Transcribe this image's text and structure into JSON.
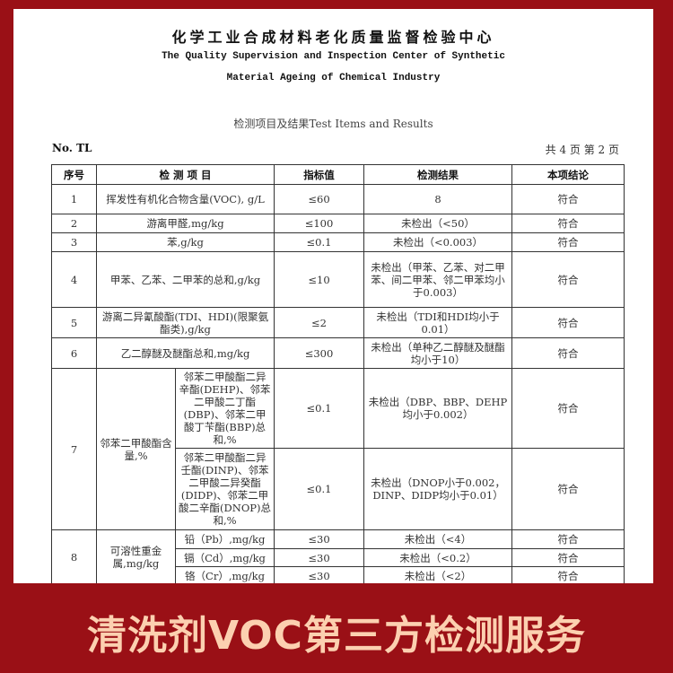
{
  "header": {
    "title_cn": "化学工业合成材料老化质量监督检验中心",
    "title_en_1": "The Quality Supervision and Inspection Center of Synthetic",
    "title_en_2": "Material Ageing of Chemical Industry",
    "section": "检测项目及结果Test Items and Results",
    "report_no": "No. TL",
    "page_info": "共 4 页 第 2 页"
  },
  "table": {
    "headers": [
      "序号",
      "检 测 项 目",
      "指标值",
      "检测结果",
      "本项结论"
    ],
    "rows": [
      {
        "no": "1",
        "item": "挥发性有机化合物含量(VOC), g/L",
        "limit": "≤60",
        "result": "8",
        "conclusion": "符合"
      },
      {
        "no": "2",
        "item": "游离甲醛,mg/kg",
        "limit": "≤100",
        "result": "未检出（<50）",
        "conclusion": "符合"
      },
      {
        "no": "3",
        "item": "苯,g/kg",
        "limit": "≤0.1",
        "result": "未检出（<0.003）",
        "conclusion": "符合"
      },
      {
        "no": "4",
        "item": "甲苯、乙苯、二甲苯的总和,g/kg",
        "limit": "≤10",
        "result": "未检出（甲苯、乙苯、对二甲苯、间二甲苯、邻二甲苯均小于0.003）",
        "conclusion": "符合"
      },
      {
        "no": "5",
        "item": "游离二异氰酸酯(TDI、HDI)(限聚氨酯类),g/kg",
        "limit": "≤2",
        "result": "未检出（TDI和HDI均小于0.01）",
        "conclusion": "符合"
      },
      {
        "no": "6",
        "item": "乙二醇醚及醚酯总和,mg/kg",
        "limit": "≤300",
        "result": "未检出（单种乙二醇醚及醚酯均小于10）",
        "conclusion": "符合"
      }
    ],
    "group7": {
      "no": "7",
      "item": "邻苯二甲酸酯含量,%",
      "subs": [
        {
          "item": "邻苯二甲酸酯二异辛酯(DEHP)、邻苯二甲酸二丁酯(DBP)、邻苯二甲酸丁苄酯(BBP)总和,%",
          "limit": "≤0.1",
          "result": "未检出（DBP、BBP、DEHP均小于0.002）",
          "conclusion": "符合"
        },
        {
          "item": "邻苯二甲酸酯二异壬酯(DINP)、邻苯二甲酸二异癸酯(DIDP)、邻苯二甲酸二辛酯(DNOP)总和,%",
          "limit": "≤0.1",
          "result": "未检出（DNOP小于0.002，DINP、DIDP均小于0.01）",
          "conclusion": "符合"
        }
      ]
    },
    "group8": {
      "no": "8",
      "item": "可溶性重金属,mg/kg",
      "subs": [
        {
          "item": "铅（Pb）,mg/kg",
          "limit": "≤30",
          "result": "未检出（<4）",
          "conclusion": "符合"
        },
        {
          "item": "镉（Cd）,mg/kg",
          "limit": "≤30",
          "result": "未检出（<0.2）",
          "conclusion": "符合"
        },
        {
          "item": "铬（Cr）,mg/kg",
          "limit": "≤30",
          "result": "未检出（<2）",
          "conclusion": "符合"
        }
      ]
    }
  },
  "banner": "清洗剂VOC第三方检测服务",
  "colors": {
    "frame": "#9a1016",
    "banner_text": "#fcd0b0"
  }
}
